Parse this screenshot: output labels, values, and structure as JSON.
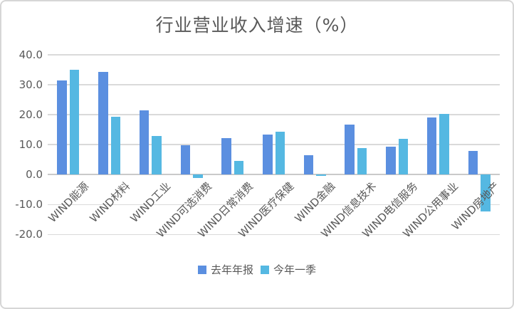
{
  "title": "行业营业收入增速（%）",
  "colors": {
    "series1": "#5b8fe0",
    "series2": "#55b8e2",
    "grid": "#dadada",
    "zero_axis": "#c9c9c9",
    "text": "#595959",
    "card_border": "#d6d6d6",
    "background": "#ffffff"
  },
  "chart_data": {
    "type": "bar",
    "title": "行业营业收入增速（%）",
    "xlabel": "",
    "ylabel": "",
    "categories": [
      "WIND能源",
      "WIND材料",
      "WIND工业",
      "WIND可选消费",
      "WIND日常消费",
      "WIND医疗保健",
      "WIND金融",
      "WIND信息技术",
      "WIND电信服务",
      "WIND公用事业",
      "WIND房地产"
    ],
    "series": [
      {
        "name": "去年年报",
        "color": "#5b8fe0",
        "values": [
          31.4,
          34.3,
          21.5,
          9.8,
          12.3,
          13.4,
          6.5,
          16.8,
          9.4,
          19.0,
          8.0
        ]
      },
      {
        "name": "今年一季",
        "color": "#55b8e2",
        "values": [
          35.0,
          19.3,
          12.9,
          -1.0,
          4.5,
          14.3,
          -0.4,
          8.8,
          12.0,
          20.2,
          -12.2
        ]
      }
    ],
    "ylim": [
      -20,
      40
    ],
    "yticks": [
      {
        "label": "40.0",
        "value": 40
      },
      {
        "label": "30.0",
        "value": 30
      },
      {
        "label": "20.0",
        "value": 20
      },
      {
        "label": "10.0",
        "value": 10
      },
      {
        "label": "0.0",
        "value": 0
      },
      {
        "label": "-10.0",
        "value": -10
      },
      {
        "label": "-20.0",
        "value": -20
      }
    ],
    "grid": true,
    "legend_position": "bottom"
  }
}
